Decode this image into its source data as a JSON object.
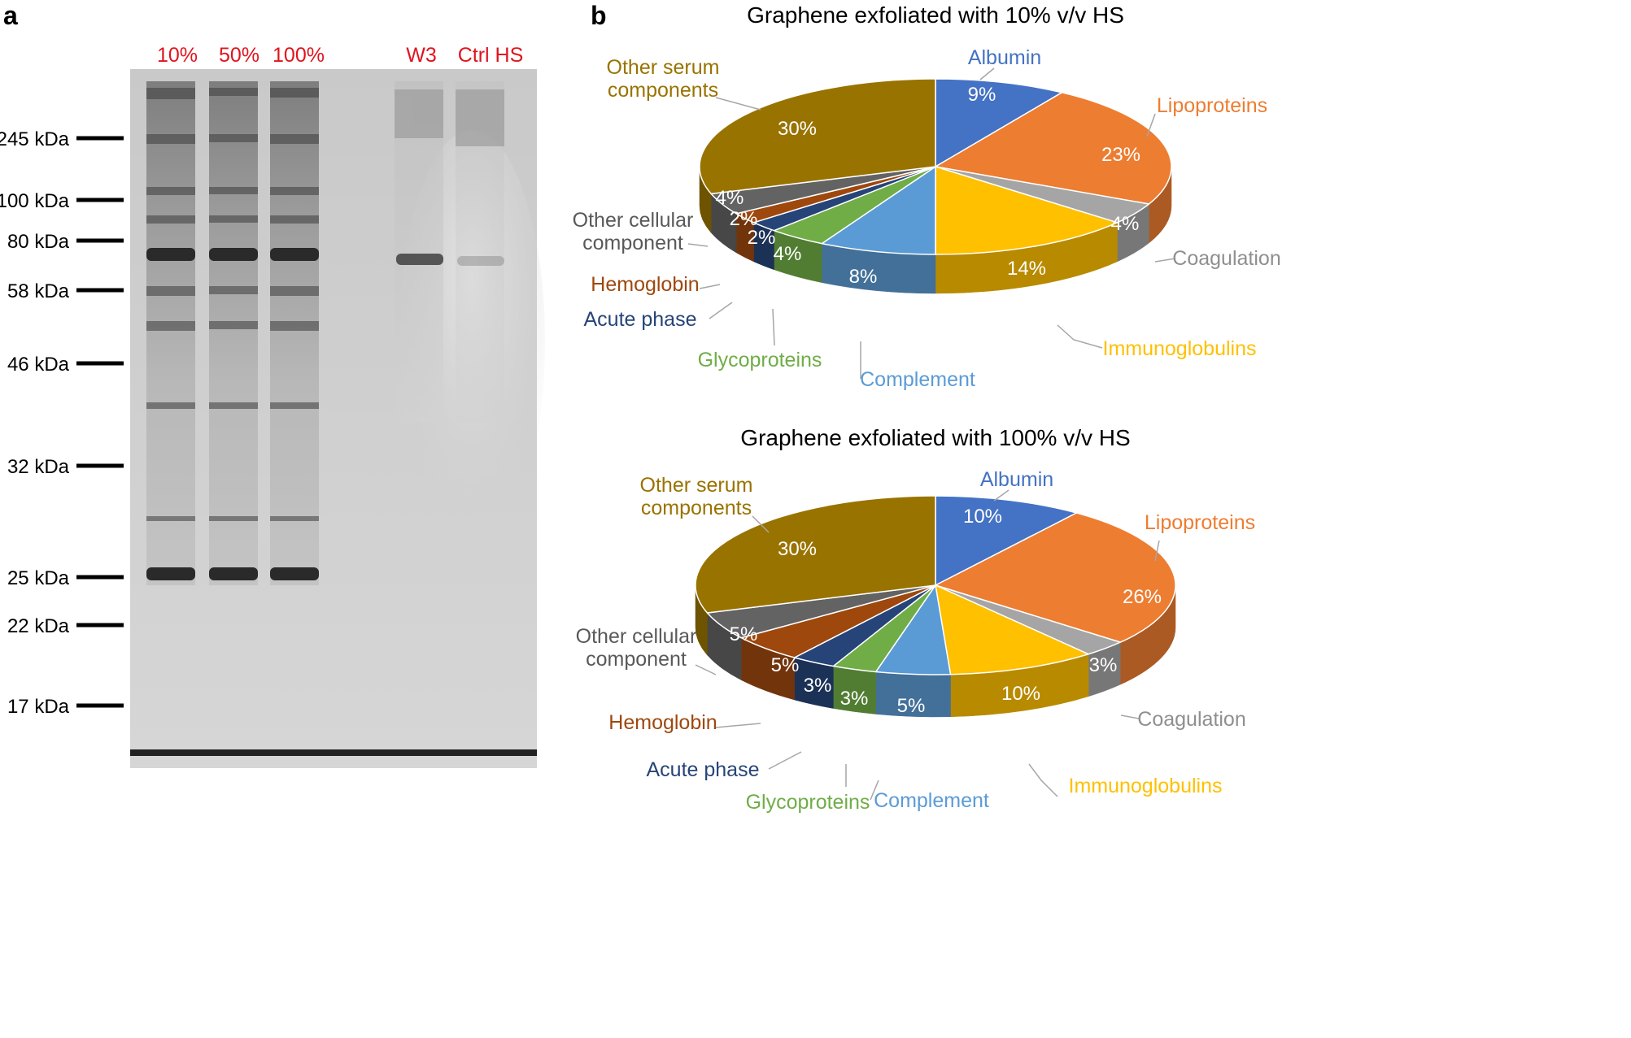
{
  "panel_a": {
    "letter": "a",
    "lane_labels": [
      "10%",
      "50%",
      "100%",
      "W3",
      "Ctrl HS"
    ],
    "lane_label_color": "#e0141e",
    "markers": [
      "245 kDa",
      "100 kDa",
      "80 kDa",
      "58 kDa",
      "46 kDa",
      "32 kDa",
      "25 kDa",
      "22 kDa",
      "17 kDa"
    ]
  },
  "panel_b": {
    "letter": "b"
  },
  "chart_data": [
    {
      "type": "pie",
      "title": "Graphene exfoliated with 10% v/v HS",
      "slices": [
        {
          "name": "Albumin",
          "value": 9,
          "label": "9%",
          "color": "#4472c4"
        },
        {
          "name": "Lipoproteins",
          "value": 23,
          "label": "23%",
          "color": "#ed7d31"
        },
        {
          "name": "Coagulation",
          "value": 4,
          "label": "4%",
          "color": "#a5a5a5"
        },
        {
          "name": "Immunoglobulins",
          "value": 14,
          "label": "14%",
          "color": "#ffc000"
        },
        {
          "name": "Complement",
          "value": 8,
          "label": "8%",
          "color": "#5b9bd5"
        },
        {
          "name": "Glycoproteins",
          "value": 4,
          "label": "4%",
          "color": "#70ad47"
        },
        {
          "name": "Acute phase",
          "value": 2,
          "label": "2%",
          "color": "#264478"
        },
        {
          "name": "Hemoglobin",
          "value": 2,
          "label": "2%",
          "color": "#9e480e"
        },
        {
          "name": "Other cellular component",
          "value": 4,
          "label": "4%",
          "color": "#636363"
        },
        {
          "name": "Other serum components",
          "value": 30,
          "label": "30%",
          "color": "#997300"
        }
      ],
      "callouts": {
        "Albumin": [
          "Albumin"
        ],
        "Lipoproteins": [
          "Lipoproteins"
        ],
        "Coagulation": [
          "Coagulation"
        ],
        "Immunoglobulins": [
          "Immunoglobulins"
        ],
        "Complement": [
          "Complement"
        ],
        "Glycoproteins": [
          "Glycoproteins"
        ],
        "Acute phase": [
          "Acute phase"
        ],
        "Hemoglobin": [
          "Hemoglobin"
        ],
        "Other cellular component": [
          "Other cellular",
          "component"
        ],
        "Other serum components": [
          "Other serum",
          "components"
        ]
      }
    },
    {
      "type": "pie",
      "title": "Graphene exfoliated with 100% v/v HS",
      "slices": [
        {
          "name": "Albumin",
          "value": 10,
          "label": "10%",
          "color": "#4472c4"
        },
        {
          "name": "Lipoproteins",
          "value": 26,
          "label": "26%",
          "color": "#ed7d31"
        },
        {
          "name": "Coagulation",
          "value": 3,
          "label": "3%",
          "color": "#a5a5a5"
        },
        {
          "name": "Immunoglobulins",
          "value": 10,
          "label": "10%",
          "color": "#ffc000"
        },
        {
          "name": "Complement",
          "value": 5,
          "label": "5%",
          "color": "#5b9bd5"
        },
        {
          "name": "Glycoproteins",
          "value": 3,
          "label": "3%",
          "color": "#70ad47"
        },
        {
          "name": "Acute phase",
          "value": 3,
          "label": "3%",
          "color": "#264478"
        },
        {
          "name": "Hemoglobin",
          "value": 5,
          "label": "5%",
          "color": "#9e480e"
        },
        {
          "name": "Other cellular component",
          "value": 5,
          "label": "5%",
          "color": "#636363"
        },
        {
          "name": "Other serum components",
          "value": 30,
          "label": "30%",
          "color": "#997300"
        }
      ],
      "callouts": {
        "Albumin": [
          "Albumin"
        ],
        "Lipoproteins": [
          "Lipoproteins"
        ],
        "Coagulation": [
          "Coagulation"
        ],
        "Immunoglobulins": [
          "Immunoglobulins"
        ],
        "Complement": [
          "Complement"
        ],
        "Glycoproteins": [
          "Glycoproteins"
        ],
        "Acute phase": [
          "Acute phase"
        ],
        "Hemoglobin": [
          "Hemoglobin"
        ],
        "Other cellular component": [
          "Other cellular",
          "component"
        ],
        "Other serum components": [
          "Other serum",
          "components"
        ]
      }
    }
  ]
}
